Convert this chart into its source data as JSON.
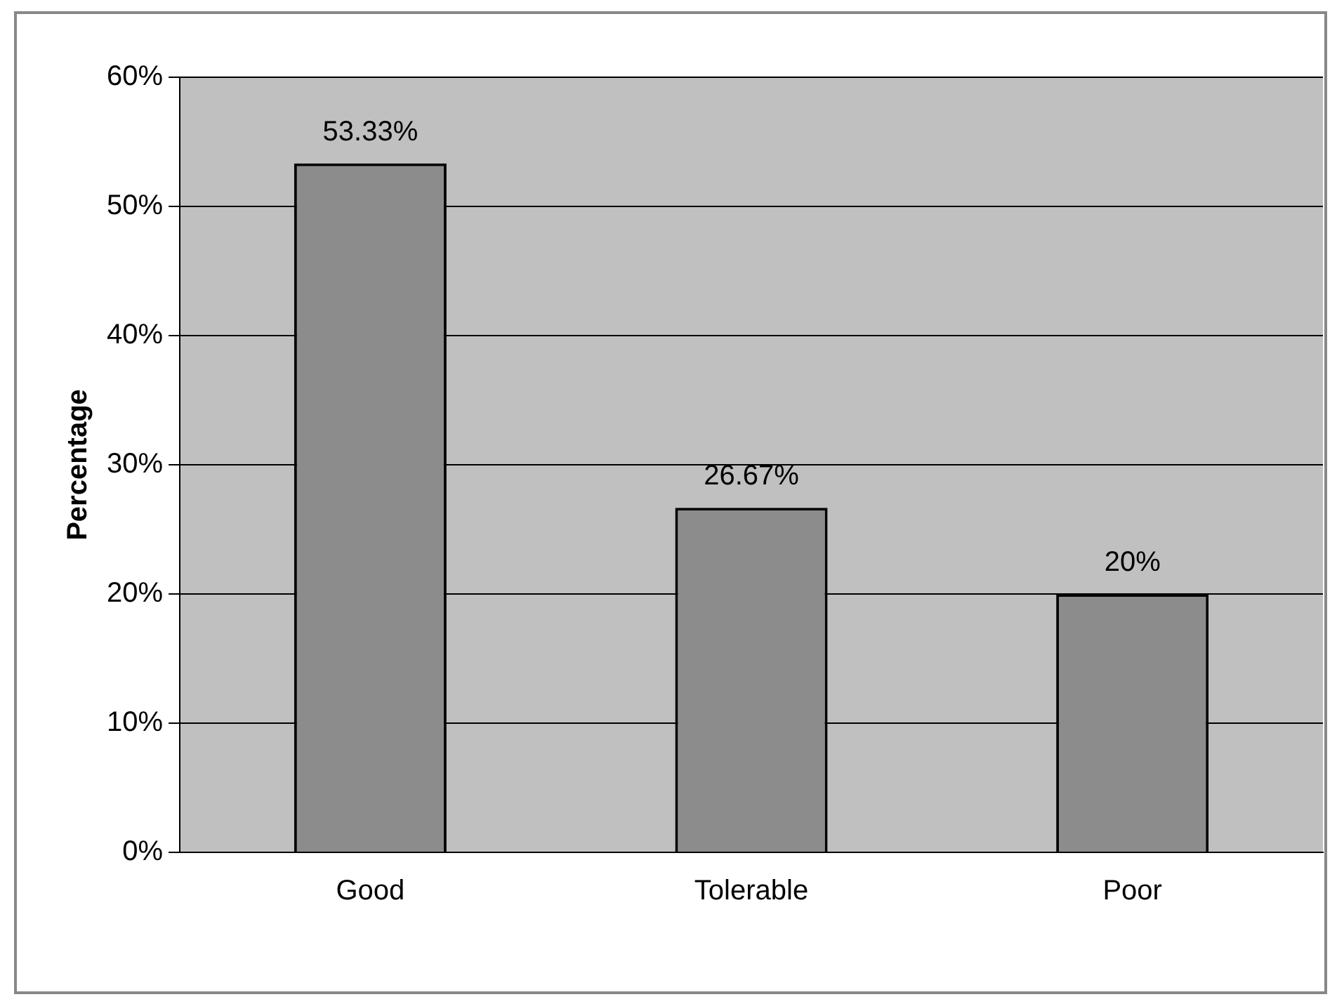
{
  "chart_data": {
    "type": "bar",
    "ylabel": "Percentage",
    "categories": [
      "Good",
      "Tolerable",
      "Poor"
    ],
    "values": [
      53.33,
      26.67,
      20
    ],
    "color": "#8c8c8c",
    "value_labels": [
      "53.33%",
      "26.67%",
      "20%"
    ],
    "ylim": [
      0,
      60
    ],
    "yticks": [
      {
        "value": 0,
        "label": "0%"
      },
      {
        "value": 10,
        "label": "10%"
      },
      {
        "value": 20,
        "label": "20%"
      },
      {
        "value": 30,
        "label": "30%"
      },
      {
        "value": 40,
        "label": "40%"
      },
      {
        "value": 50,
        "label": "50%"
      },
      {
        "value": 60,
        "label": "60%"
      }
    ],
    "grid": "y",
    "legend": false
  }
}
